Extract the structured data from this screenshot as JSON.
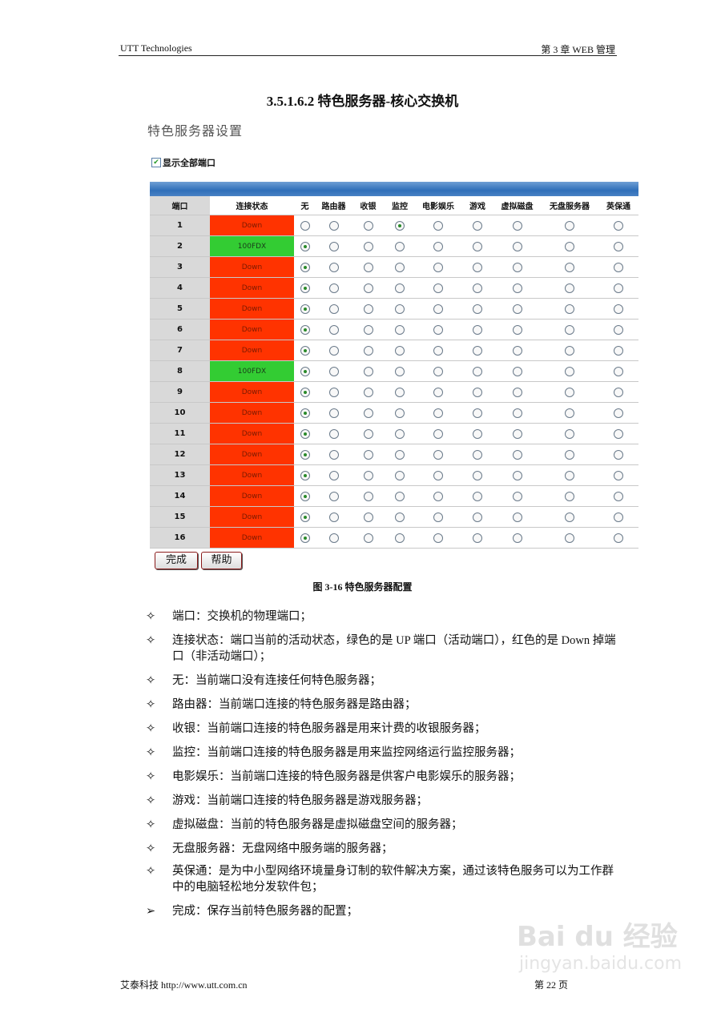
{
  "header": {
    "left": "UTT Technologies",
    "right": "第 3 章  WEB 管理"
  },
  "section_title": "3.5.1.6.2    特色服务器-核心交换机",
  "ui": {
    "title": "特色服务器设置",
    "show_all_label": "显示全部端口",
    "show_all_checked": true,
    "columns": [
      "端口",
      "连接状态",
      "无",
      "路由器",
      "收银",
      "监控",
      "电影娱乐",
      "游戏",
      "虚拟磁盘",
      "无盘服务器",
      "英保通"
    ],
    "rows": [
      {
        "port": "1",
        "status": "Down",
        "selected": 3
      },
      {
        "port": "2",
        "status": "100FDX",
        "selected": 0
      },
      {
        "port": "3",
        "status": "Down",
        "selected": 0
      },
      {
        "port": "4",
        "status": "Down",
        "selected": 0
      },
      {
        "port": "5",
        "status": "Down",
        "selected": 0
      },
      {
        "port": "6",
        "status": "Down",
        "selected": 0
      },
      {
        "port": "7",
        "status": "Down",
        "selected": 0
      },
      {
        "port": "8",
        "status": "100FDX",
        "selected": 0
      },
      {
        "port": "9",
        "status": "Down",
        "selected": 0
      },
      {
        "port": "10",
        "status": "Down",
        "selected": 0
      },
      {
        "port": "11",
        "status": "Down",
        "selected": 0
      },
      {
        "port": "12",
        "status": "Down",
        "selected": 0
      },
      {
        "port": "13",
        "status": "Down",
        "selected": 0
      },
      {
        "port": "14",
        "status": "Down",
        "selected": 0
      },
      {
        "port": "15",
        "status": "Down",
        "selected": 0
      },
      {
        "port": "16",
        "status": "Down",
        "selected": 0
      }
    ],
    "colors": {
      "down": "#ff3300",
      "up": "#33cc33"
    },
    "buttons": {
      "done": "完成",
      "help": "帮助"
    }
  },
  "figure_caption": "图  3-16  特色服务器配置",
  "bullets": [
    {
      "marker": "✧",
      "text": "端口：交换机的物理端口；"
    },
    {
      "marker": "✧",
      "text": "连接状态：端口当前的活动状态，绿色的是 UP 端口（活动端口），红色的是 Down 掉端口（非活动端口）；"
    },
    {
      "marker": "✧",
      "text": "无：当前端口没有连接任何特色服务器；"
    },
    {
      "marker": "✧",
      "text": "路由器：当前端口连接的特色服务器是路由器；"
    },
    {
      "marker": "✧",
      "text": "收银：当前端口连接的特色服务器是用来计费的收银服务器；"
    },
    {
      "marker": "✧",
      "text": "监控：当前端口连接的特色服务器是用来监控网络运行监控服务器；"
    },
    {
      "marker": "✧",
      "text": "电影娱乐：当前端口连接的特色服务器是供客户电影娱乐的服务器；"
    },
    {
      "marker": "✧",
      "text": "游戏：当前端口连接的特色服务器是游戏服务器；"
    },
    {
      "marker": "✧",
      "text": "虚拟磁盘：当前的特色服务器是虚拟磁盘空间的服务器；"
    },
    {
      "marker": "✧",
      "text": "无盘服务器：无盘网络中服务端的服务器；"
    },
    {
      "marker": "✧",
      "text": "英保通：是为中小型网络环境量身订制的软件解决方案，通过该特色服务可以为工作群中的电脑轻松地分发软件包；"
    },
    {
      "marker": "➢",
      "text": "完成：保存当前特色服务器的配置；"
    }
  ],
  "footer": {
    "left": "艾泰科技  http://www.utt.com.cn",
    "right": "第 22 页"
  },
  "watermark": {
    "logo": "Baidu经验",
    "url": "jingyan.baidu.com"
  }
}
